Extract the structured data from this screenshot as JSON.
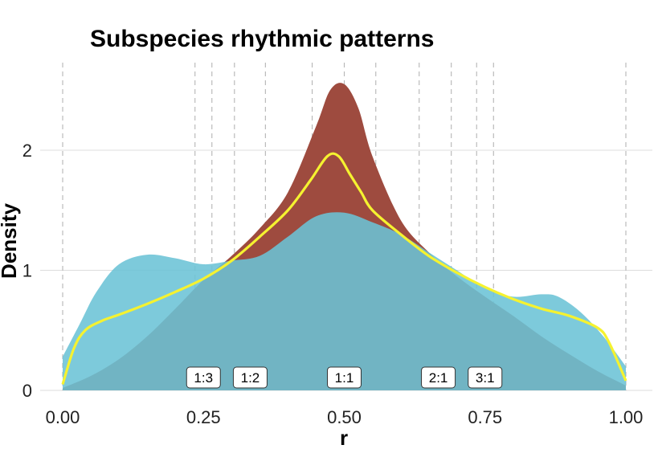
{
  "chart_data": {
    "type": "area",
    "title": "Subspecies rhythmic patterns",
    "xlabel": "r",
    "ylabel": "Density",
    "xlim": [
      0,
      1
    ],
    "ylim": [
      0,
      2.6
    ],
    "grid": true,
    "x_ticks": [
      {
        "value": 0.0,
        "label": "0.00"
      },
      {
        "value": 0.25,
        "label": "0.25"
      },
      {
        "value": 0.5,
        "label": "0.50"
      },
      {
        "value": 0.75,
        "label": "0.75"
      },
      {
        "value": 1.0,
        "label": "1.00"
      }
    ],
    "y_ticks": [
      {
        "value": 0,
        "label": "0"
      },
      {
        "value": 1,
        "label": "1"
      },
      {
        "value": 2,
        "label": "2"
      }
    ],
    "reference_lines": [
      {
        "x": 0.0
      },
      {
        "x": 0.235
      },
      {
        "x": 0.265
      },
      {
        "x": 0.305
      },
      {
        "x": 0.36
      },
      {
        "x": 0.443
      },
      {
        "x": 0.5
      },
      {
        "x": 0.556
      },
      {
        "x": 0.633
      },
      {
        "x": 0.69
      },
      {
        "x": 0.735
      },
      {
        "x": 0.765
      },
      {
        "x": 1.0
      }
    ],
    "ratio_labels": [
      {
        "x": 0.25,
        "label": "1:3"
      },
      {
        "x": 0.333,
        "label": "1:2"
      },
      {
        "x": 0.5,
        "label": "1:1"
      },
      {
        "x": 0.667,
        "label": "2:1"
      },
      {
        "x": 0.75,
        "label": "3:1"
      }
    ],
    "series": [
      {
        "color": "#9e4b3f",
        "x": [
          0.0,
          0.05,
          0.1,
          0.15,
          0.2,
          0.25,
          0.3,
          0.35,
          0.4,
          0.45,
          0.475,
          0.5,
          0.525,
          0.55,
          0.6,
          0.65,
          0.7,
          0.75,
          0.8,
          0.85,
          0.9,
          0.95,
          1.0
        ],
        "y": [
          0.02,
          0.12,
          0.26,
          0.45,
          0.68,
          0.92,
          1.12,
          1.35,
          1.65,
          2.2,
          2.5,
          2.55,
          2.35,
          1.95,
          1.42,
          1.15,
          0.95,
          0.78,
          0.62,
          0.45,
          0.3,
          0.16,
          0.04
        ]
      },
      {
        "color": "#6bc3d6",
        "x": [
          0.0,
          0.03,
          0.06,
          0.1,
          0.15,
          0.2,
          0.25,
          0.3,
          0.35,
          0.4,
          0.45,
          0.5,
          0.55,
          0.6,
          0.65,
          0.7,
          0.75,
          0.8,
          0.85,
          0.88,
          0.92,
          0.96,
          1.0
        ],
        "y": [
          0.28,
          0.55,
          0.82,
          1.05,
          1.13,
          1.1,
          1.05,
          1.08,
          1.12,
          1.28,
          1.45,
          1.48,
          1.4,
          1.3,
          1.15,
          1.0,
          0.85,
          0.78,
          0.8,
          0.78,
          0.65,
          0.45,
          0.2
        ]
      },
      {
        "color": "#f5f230",
        "x": [
          0.0,
          0.02,
          0.04,
          0.07,
          0.1,
          0.15,
          0.2,
          0.25,
          0.3,
          0.35,
          0.4,
          0.44,
          0.47,
          0.49,
          0.51,
          0.53,
          0.55,
          0.6,
          0.65,
          0.7,
          0.75,
          0.8,
          0.85,
          0.9,
          0.95,
          0.97,
          1.0
        ],
        "y": [
          0.05,
          0.35,
          0.5,
          0.58,
          0.63,
          0.72,
          0.82,
          0.93,
          1.08,
          1.28,
          1.5,
          1.75,
          1.95,
          1.95,
          1.8,
          1.65,
          1.5,
          1.3,
          1.12,
          0.98,
          0.86,
          0.76,
          0.68,
          0.62,
          0.52,
          0.4,
          0.08
        ]
      }
    ]
  }
}
